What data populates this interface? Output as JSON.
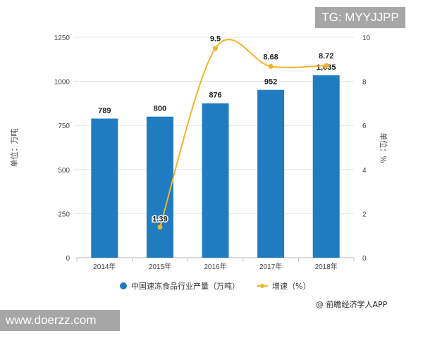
{
  "chart_data": {
    "type": "bar+line",
    "categories": [
      "2014年",
      "2015年",
      "2016年",
      "2017年",
      "2018年"
    ],
    "series": [
      {
        "name": "中国速冻食品行业产量（万吨）",
        "type": "bar",
        "axis": "left",
        "values": [
          789,
          800,
          876,
          952,
          1035
        ],
        "labels": [
          "789",
          "800",
          "876",
          "952",
          "1,035"
        ],
        "color": "#1f7cc1"
      },
      {
        "name": "增速（%）",
        "type": "line",
        "axis": "right",
        "values": [
          null,
          1.39,
          9.5,
          8.68,
          8.72
        ],
        "labels": [
          "",
          "1.39",
          "9.5",
          "8.68",
          "8.72"
        ],
        "color": "#f0b429"
      }
    ],
    "ylabel": "单位：万吨",
    "y2label": "单位：%",
    "ylim": [
      0,
      1250
    ],
    "yticks": [
      "0",
      "250",
      "500",
      "750",
      "1000",
      "1250"
    ],
    "y2lim": [
      0,
      10
    ],
    "y2ticks": [
      "0",
      "2",
      "4",
      "6",
      "8",
      "10"
    ],
    "grid": true,
    "legend": "bottom"
  },
  "credit": "@ 前瞻经济学人APP",
  "overlays": {
    "tg": "TG: MYYJJPP",
    "site": "www.doerzz.com"
  }
}
